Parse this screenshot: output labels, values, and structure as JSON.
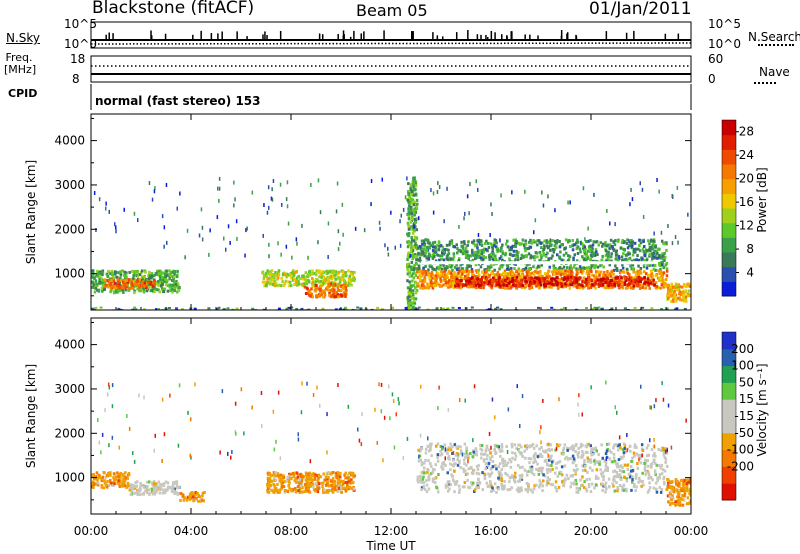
{
  "header": {
    "station": "Blackstone (fitACF)",
    "beam": "Beam 05",
    "date": "01/Jan/2011"
  },
  "panels": {
    "nsky": {
      "label": "N.Sky",
      "ticks": [
        "10^5",
        "10^0"
      ],
      "right_label": "N.Search",
      "right_ticks": [
        "10^5",
        "10^0"
      ]
    },
    "freq": {
      "label_line1": "Freq.",
      "label_line2": "[MHz]",
      "ticks": [
        "18",
        "8"
      ],
      "right_label": "Nave",
      "right_ticks": [
        "60",
        "0"
      ]
    },
    "cpid": {
      "label": "CPID",
      "text": "normal (fast stereo) 153"
    }
  },
  "chart_data": [
    {
      "type": "heatmap",
      "title": "",
      "xlabel": "",
      "ylabel": "Slant Range [km]",
      "x_tick_labels": [
        "00:00",
        "04:00",
        "08:00",
        "12:00",
        "16:00",
        "20:00",
        "00:00"
      ],
      "xlim_hours": [
        0,
        24
      ],
      "y_ticks": [
        1000,
        2000,
        3000,
        4000
      ],
      "ylim": [
        180,
        4600
      ],
      "colorbar": {
        "label": "Power [dB]",
        "ticks": [
          "4",
          "8",
          "12",
          "16",
          "20",
          "24",
          "28"
        ],
        "range": [
          0,
          30
        ],
        "colors": [
          "#0a1ed8",
          "#2a4fb0",
          "#3a7a5a",
          "#3aa04a",
          "#5cc82a",
          "#a0d01e",
          "#f0c800",
          "#f5a000",
          "#f57800",
          "#f04a00",
          "#e01e00",
          "#c80000"
        ]
      },
      "regions": [
        {
          "t": [
            0.0,
            3.5
          ],
          "r": [
            600,
            1100
          ],
          "level": 10
        },
        {
          "t": [
            0.5,
            2.5
          ],
          "r": [
            700,
            900
          ],
          "level": 22
        },
        {
          "t": [
            6.8,
            10.5
          ],
          "r": [
            750,
            1100
          ],
          "level": 14
        },
        {
          "t": [
            8.5,
            10.2
          ],
          "r": [
            500,
            800
          ],
          "level": 22
        },
        {
          "t": [
            12.6,
            13.0
          ],
          "r": [
            200,
            3200
          ],
          "level": 10
        },
        {
          "t": [
            13.0,
            23.0
          ],
          "r": [
            1100,
            1800
          ],
          "level": 8
        },
        {
          "t": [
            13.0,
            23.0
          ],
          "r": [
            700,
            1100
          ],
          "level": 20
        },
        {
          "t": [
            14.5,
            22.5
          ],
          "r": [
            750,
            950
          ],
          "level": 27
        },
        {
          "t": [
            23.0,
            24.0
          ],
          "r": [
            400,
            800
          ],
          "level": 18
        }
      ]
    },
    {
      "type": "heatmap",
      "title": "",
      "xlabel": "Time UT",
      "ylabel": "Slant Range [km]",
      "x_tick_labels": [
        "00:00",
        "04:00",
        "08:00",
        "12:00",
        "16:00",
        "20:00",
        "00:00"
      ],
      "xlim_hours": [
        0,
        24
      ],
      "y_ticks": [
        1000,
        2000,
        3000,
        4000
      ],
      "ylim": [
        180,
        4600
      ],
      "colorbar": {
        "label": "Velocity [m s⁻¹]",
        "ticks": [
          "200",
          "100",
          "50",
          "15",
          "-15",
          "-50",
          "-100",
          "-200"
        ],
        "colors": [
          "#2030c8",
          "#2860b0",
          "#20a050",
          "#60c840",
          "#c8c8c0",
          "#c8c8c0",
          "#f0a000",
          "#f57800",
          "#f04000",
          "#e01000"
        ]
      },
      "regions": [
        {
          "t": [
            0.0,
            1.5
          ],
          "r": [
            800,
            1150
          ],
          "vel": "negative"
        },
        {
          "t": [
            1.5,
            3.5
          ],
          "r": [
            650,
            950
          ],
          "vel": "near-zero"
        },
        {
          "t": [
            3.5,
            4.5
          ],
          "r": [
            500,
            700
          ],
          "vel": "negative"
        },
        {
          "t": [
            7.0,
            10.5
          ],
          "r": [
            700,
            1150
          ],
          "vel": "negative"
        },
        {
          "t": [
            13.0,
            23.0
          ],
          "r": [
            700,
            1800
          ],
          "vel": "near-zero"
        },
        {
          "t": [
            23.0,
            24.0
          ],
          "r": [
            400,
            1000
          ],
          "vel": "negative"
        }
      ]
    }
  ]
}
